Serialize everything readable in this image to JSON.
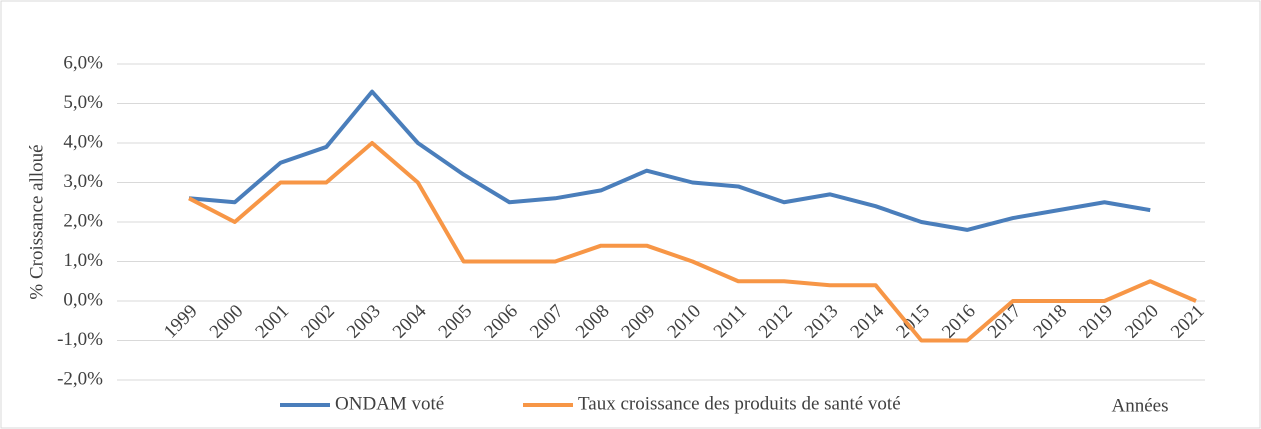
{
  "chart_data": {
    "type": "line",
    "ylabel": "% Croissance alloué",
    "xlabel": "Années",
    "categories": [
      "1999",
      "2000",
      "2001",
      "2002",
      "2003",
      "2004",
      "2005",
      "2006",
      "2007",
      "2008",
      "2009",
      "2010",
      "2011",
      "2012",
      "2013",
      "2014",
      "2015",
      "2016",
      "2017",
      "2018",
      "2019",
      "2020",
      "2021"
    ],
    "series": [
      {
        "name": "ONDAM voté",
        "color": "#4a7ebb",
        "values": [
          2.6,
          2.5,
          3.5,
          3.9,
          5.3,
          4.0,
          3.2,
          2.5,
          2.6,
          2.8,
          3.3,
          3.0,
          2.9,
          2.5,
          2.7,
          2.4,
          2.0,
          1.8,
          2.1,
          2.3,
          2.5,
          2.3,
          null
        ]
      },
      {
        "name": "Taux croissance des produits de santé voté",
        "color": "#f79646",
        "values": [
          2.6,
          2.0,
          3.0,
          3.0,
          4.0,
          3.0,
          1.0,
          1.0,
          1.0,
          1.4,
          1.4,
          1.0,
          0.5,
          0.5,
          0.4,
          0.4,
          -1.0,
          -1.0,
          0.0,
          0.0,
          0.0,
          0.5,
          0.0
        ]
      }
    ],
    "ylim": [
      -2,
      6
    ],
    "yticks": [
      {
        "value": -2,
        "label": "-2,0%"
      },
      {
        "value": -1,
        "label": "-1,0%"
      },
      {
        "value": 0,
        "label": "0,0%"
      },
      {
        "value": 1,
        "label": "1,0%"
      },
      {
        "value": 2,
        "label": "2,0%"
      },
      {
        "value": 3,
        "label": "3,0%"
      },
      {
        "value": 4,
        "label": "4,0%"
      },
      {
        "value": 5,
        "label": "5,0%"
      },
      {
        "value": 6,
        "label": "6,0%"
      }
    ],
    "grid": true,
    "legend": "bottom"
  }
}
